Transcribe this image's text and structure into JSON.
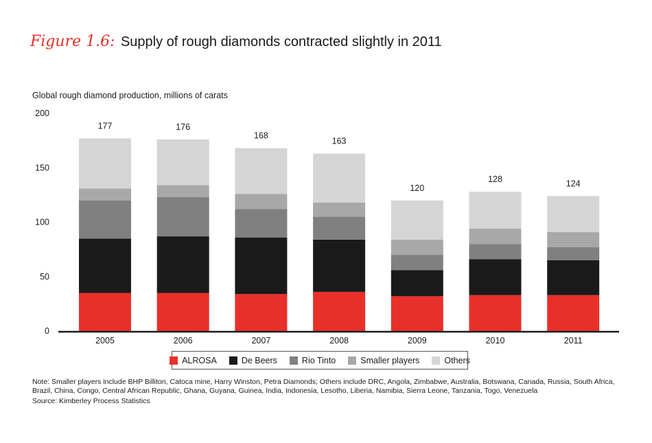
{
  "title": {
    "figure_label": "Figure 1.6:",
    "text": "Supply of rough diamonds contracted slightly in 2011"
  },
  "chart_data": {
    "type": "bar",
    "stacked": true,
    "ylabel": "Global rough diamond production, millions of carats",
    "ylim": [
      0,
      200
    ],
    "yticks": [
      0,
      50,
      100,
      150,
      200
    ],
    "categories": [
      "2005",
      "2006",
      "2007",
      "2008",
      "2009",
      "2010",
      "2011"
    ],
    "totals": [
      177,
      176,
      168,
      163,
      120,
      128,
      124
    ],
    "series": [
      {
        "name": "ALROSA",
        "color": "#e8302a",
        "values": [
          35,
          35,
          34,
          36,
          32,
          33,
          33
        ]
      },
      {
        "name": "De Beers",
        "color": "#1a1a1a",
        "values": [
          50,
          52,
          52,
          48,
          24,
          33,
          32
        ]
      },
      {
        "name": "Rio Tinto",
        "color": "#808080",
        "values": [
          35,
          36,
          26,
          21,
          14,
          14,
          12
        ]
      },
      {
        "name": "Smaller players",
        "color": "#a8a8a8",
        "values": [
          11,
          11,
          14,
          13,
          14,
          14,
          14
        ]
      },
      {
        "name": "Others",
        "color": "#d5d5d6",
        "values": [
          46,
          42,
          42,
          45,
          36,
          34,
          33
        ]
      }
    ]
  },
  "note": "Note: Smaller players include BHP Billiton, Catoca mine, Harry Winston, Petra Diamonds; Others include DRC, Angola, Zimbabwe, Australia, Botswana, Canada, Russia, South Africa, Brazil, China, Congo, Central African Republic, Ghana, Guyana, Guinea, India, Indonesia, Lesotho, Liberia, Namibia, Sierra Leone, Tanzania, Togo, Venezuela",
  "source": "Source: Kimberley Process Statistics"
}
